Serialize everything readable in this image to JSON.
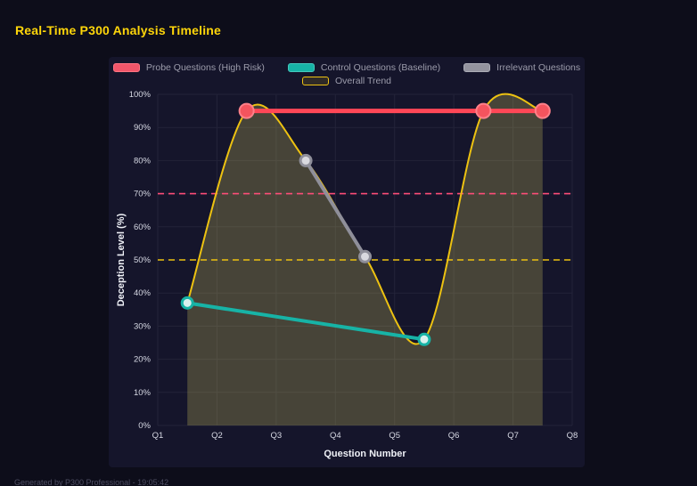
{
  "header": {
    "title": "Real-Time P300 Analysis Timeline"
  },
  "footer": {
    "text": "Generated by P300 Professional - 19:05:42"
  },
  "chart_data": {
    "type": "line",
    "title": "Real-Time P300 Analysis Timeline",
    "xlabel": "Question Number",
    "ylabel": "Deception Level (%)",
    "x_range": [
      1,
      8
    ],
    "y_range": [
      0,
      100
    ],
    "x_tick_values": [
      1,
      2,
      3,
      4,
      5,
      6,
      7,
      8
    ],
    "x_tick_labels": [
      "Q1",
      "Q2",
      "Q3",
      "Q4",
      "Q5",
      "Q6",
      "Q7",
      "Q8"
    ],
    "y_tick_values": [
      0,
      10,
      20,
      30,
      40,
      50,
      60,
      70,
      80,
      90,
      100
    ],
    "y_tick_labels": [
      "0%",
      "10%",
      "20%",
      "30%",
      "40%",
      "50%",
      "60%",
      "70%",
      "80%",
      "90%",
      "100%"
    ],
    "grid": true,
    "legend_position": "top",
    "style": {
      "grid_color": "#232339",
      "tick_color": "#d7d9e4",
      "panel_bg": "#15152b",
      "page_bg": "#0d0d1a",
      "title_color": "#ffd60a"
    },
    "series": [
      {
        "name": "Probe Questions (High Risk)",
        "color": "#ff4757",
        "line_width": 5,
        "smooth": false,
        "fill": false,
        "points": [
          {
            "x": 2.5,
            "y": 95
          },
          {
            "x": 6.5,
            "y": 95
          },
          {
            "x": 7.5,
            "y": 95
          }
        ],
        "point_style": {
          "r": 8,
          "fill": "#f4545e",
          "stroke": "#ff8089",
          "stroke_width": 2
        },
        "legend": {
          "fill": "#f1566a",
          "stroke": "#ff7582"
        }
      },
      {
        "name": "Control Questions (Baseline)",
        "color": "#17b3a6",
        "line_width": 4,
        "smooth": false,
        "fill": false,
        "points": [
          {
            "x": 1.5,
            "y": 37
          },
          {
            "x": 5.5,
            "y": 26
          }
        ],
        "point_style": {
          "r": 6,
          "fill": "#d9f1ee",
          "stroke": "#17b3a6",
          "stroke_width": 3
        },
        "legend": {
          "fill": "#17b3a6",
          "stroke": "#45c8bd"
        }
      },
      {
        "name": "Irrelevant Questions",
        "color": "#8f8f9a",
        "line_width": 4,
        "smooth": false,
        "fill": false,
        "points": [
          {
            "x": 3.5,
            "y": 80
          },
          {
            "x": 4.5,
            "y": 51
          }
        ],
        "point_style": {
          "r": 6,
          "fill": "#d9d9df",
          "stroke": "#8f8f9a",
          "stroke_width": 3
        },
        "legend": {
          "fill": "#93939e",
          "stroke": "#abacb6"
        }
      },
      {
        "name": "Overall Trend",
        "color": "#edc211",
        "line_width": 2,
        "smooth": true,
        "fill": true,
        "fill_color": "rgba(216,205,96,0.26)",
        "points": [
          {
            "x": 1.5,
            "y": 37
          },
          {
            "x": 2.5,
            "y": 95
          },
          {
            "x": 3.5,
            "y": 80
          },
          {
            "x": 4.5,
            "y": 51
          },
          {
            "x": 5.5,
            "y": 26
          },
          {
            "x": 6.5,
            "y": 95
          },
          {
            "x": 7.5,
            "y": 95
          }
        ],
        "point_style": null,
        "legend": {
          "fill": "rgba(237,194,17,0.12)",
          "stroke": "#edc211"
        }
      }
    ],
    "thresholds": [
      {
        "name": "high-risk-threshold",
        "value": 70,
        "color": "#ff4d79",
        "dash": "7 5",
        "width": 1.6
      },
      {
        "name": "baseline-threshold",
        "value": 50,
        "color": "#edc211",
        "dash": "7 5",
        "width": 1.6
      }
    ]
  }
}
